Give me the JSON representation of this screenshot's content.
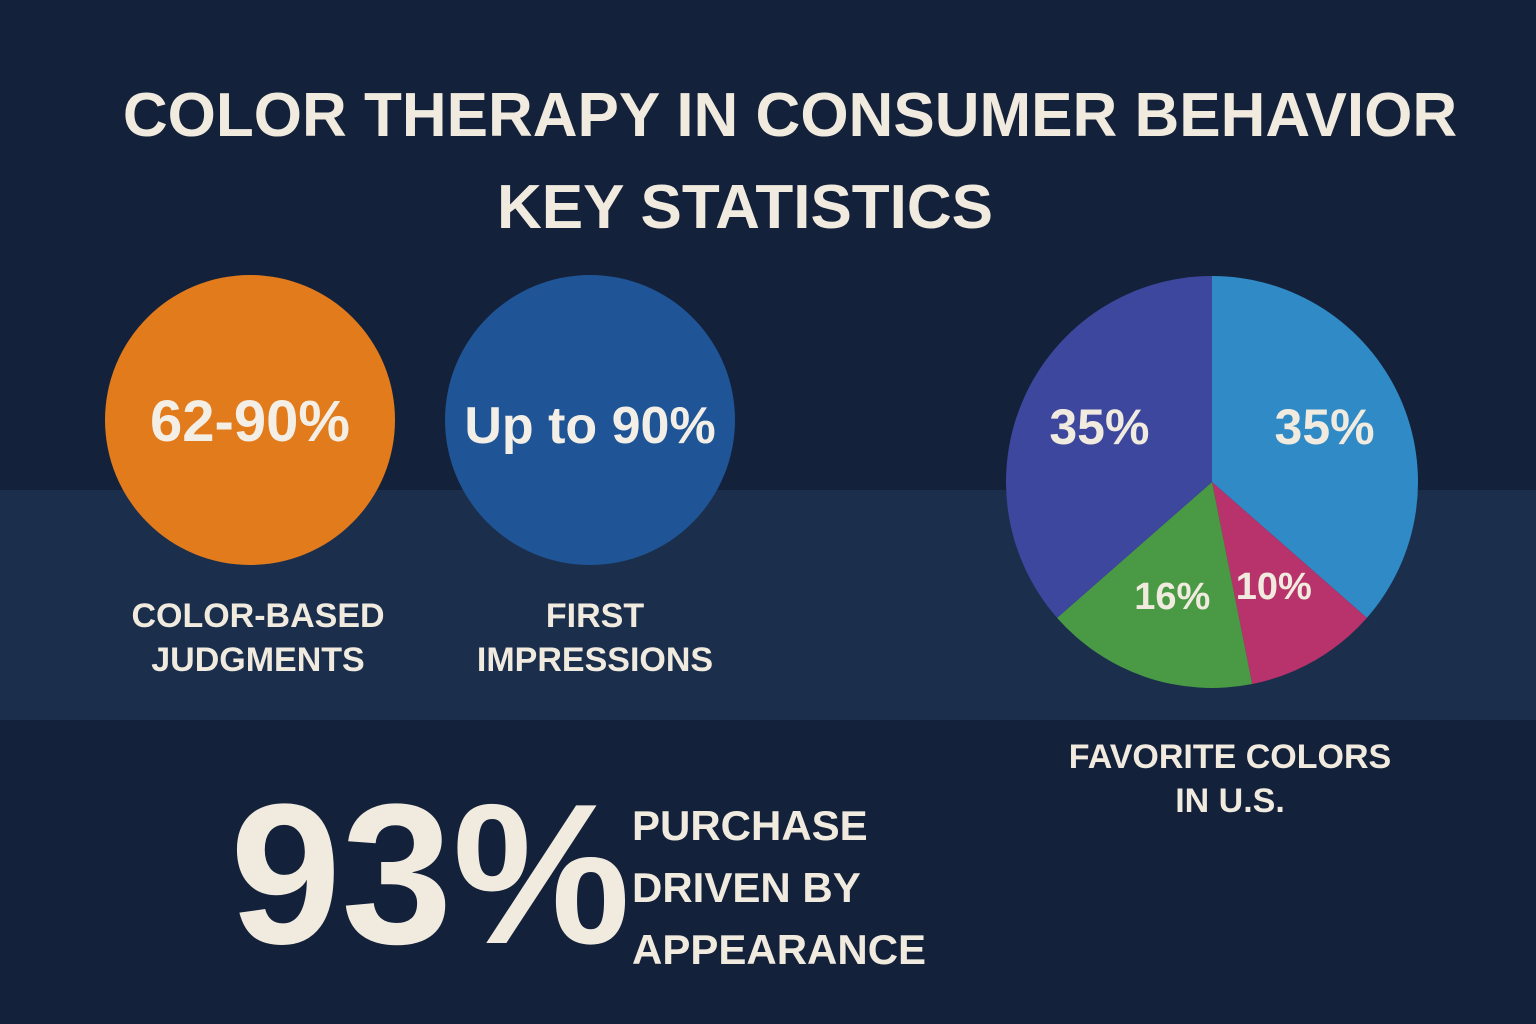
{
  "header": {
    "title": "COLOR THERAPY IN CONSUMER BEHAVIOR",
    "subtitle": "KEY STATISTICS"
  },
  "stats": [
    {
      "value_text": "62-90%",
      "label": "COLOR-BASED JUDGMENTS",
      "color": "#e27b1c"
    },
    {
      "value_text": "Up to 90%",
      "label": "FIRST IMPRESSIONS",
      "color": "#1f5596"
    }
  ],
  "highlight": {
    "value_text": "93%",
    "label": "PURCHASE DRIVEN BY APPEARANCE"
  },
  "chart_data": {
    "type": "pie",
    "caption": "FAVORITE COLORS IN U.S.",
    "values": [
      35,
      10,
      16,
      35
    ],
    "value_labels": [
      "35%",
      "10%",
      "16%",
      "35%"
    ],
    "colors": [
      "#2f8ac6",
      "#b8326b",
      "#4a9a45",
      "#3d479d"
    ]
  }
}
